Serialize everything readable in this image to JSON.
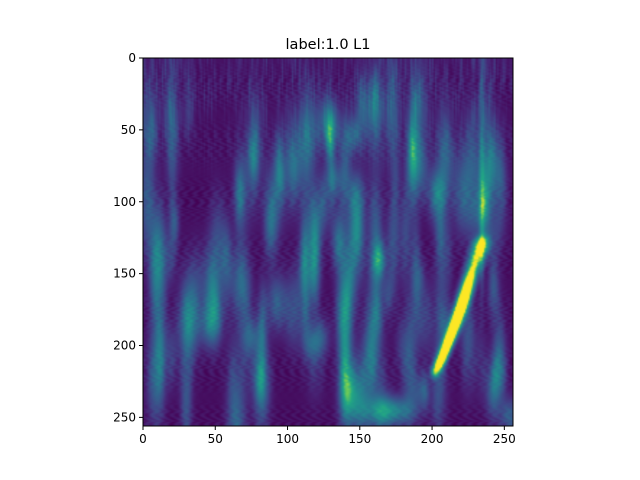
{
  "chart_data": {
    "type": "heatmap",
    "title": "label:1.0 L1",
    "xlabel": "",
    "ylabel": "",
    "xlim": [
      0,
      256
    ],
    "ylim": [
      256,
      0
    ],
    "grid": false,
    "colormap": "viridis",
    "x_ticks": [
      {
        "value": 0,
        "label": "0"
      },
      {
        "value": 50,
        "label": "50"
      },
      {
        "value": 100,
        "label": "100"
      },
      {
        "value": 150,
        "label": "150"
      },
      {
        "value": 200,
        "label": "200"
      },
      {
        "value": 250,
        "label": "250"
      }
    ],
    "y_ticks": [
      {
        "value": 0,
        "label": "0"
      },
      {
        "value": 50,
        "label": "50"
      },
      {
        "value": 100,
        "label": "100"
      },
      {
        "value": 150,
        "label": "150"
      },
      {
        "value": 200,
        "label": "200"
      },
      {
        "value": 250,
        "label": "250"
      }
    ],
    "features": [
      {
        "kind": "chirp",
        "x_start": 200,
        "y_start": 220,
        "x_end": 234,
        "y_end": 125,
        "intensity": 1.0
      },
      {
        "kind": "blob",
        "x": 170,
        "y": 245,
        "intensity": 0.55
      },
      {
        "kind": "vertical_streak",
        "x": 234,
        "y_start": 0,
        "y_end": 256,
        "intensity": 0.45
      }
    ]
  }
}
